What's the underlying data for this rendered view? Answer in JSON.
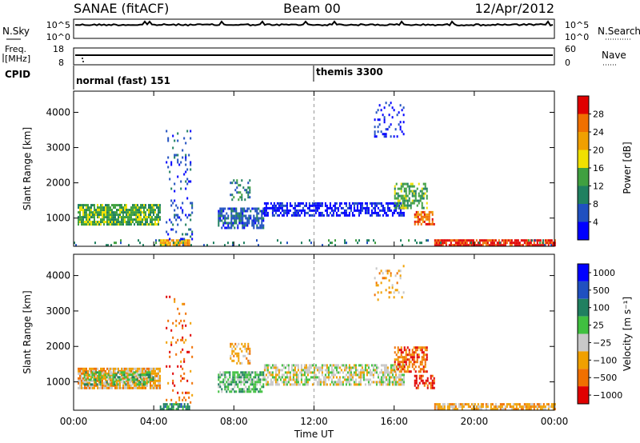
{
  "header": {
    "station": "SANAE (fitACF)",
    "beam": "Beam 00",
    "date": "12/Apr/2012"
  },
  "top_panels": {
    "nsky_label": "N.Sky",
    "nsearch_label": "N.Search",
    "nsky_ticks": [
      "10^5",
      "10^0"
    ],
    "nsearch_ticks": [
      "10^5",
      "10^0"
    ],
    "freq_label_1": "Freq.",
    "freq_label_2": "[MHz]",
    "freq_ticks": [
      "18",
      "8"
    ],
    "nave_label": "Nave",
    "nave_ticks": [
      "60",
      "0"
    ],
    "cpid_label": "CPID",
    "cpid_entries": [
      {
        "text": "normal (fast) 151",
        "start_hour": 0
      },
      {
        "text": "themis 3300",
        "start_hour": 12
      }
    ]
  },
  "colors": {
    "power_scale": [
      "#0000ff",
      "#2050c0",
      "#208060",
      "#40a040",
      "#f0e000",
      "#f0a000",
      "#f07000",
      "#e00000"
    ],
    "velocity_scale": [
      "#0000ff",
      "#2050c0",
      "#208060",
      "#40c040",
      "#c8c8c8",
      "#f0a000",
      "#f07000",
      "#e00000"
    ]
  },
  "chart_data": [
    {
      "type": "heatmap",
      "panel": "power",
      "x_range_hours": [
        0,
        24
      ],
      "xticks": [
        "00:00",
        "04:00",
        "08:00",
        "12:00",
        "16:00",
        "20:00",
        "00:00"
      ],
      "ylabel": "Slant Range [km]",
      "ylim": [
        200,
        4600
      ],
      "yticks": [
        1000,
        2000,
        3000,
        4000
      ],
      "colorbar_label": "Power [dB]",
      "colorbar_ticks": [
        "4",
        "8",
        "12",
        "16",
        "20",
        "24",
        "28"
      ],
      "features": [
        {
          "t0": 0.2,
          "t1": 4.3,
          "r0": 800,
          "r1": 1400,
          "level": 3,
          "density": 0.85
        },
        {
          "t0": 4.3,
          "t1": 5.8,
          "r0": 200,
          "r1": 400,
          "level": 5,
          "density": 0.9
        },
        {
          "t0": 4.6,
          "t1": 5.9,
          "r0": 400,
          "r1": 3500,
          "level": 1,
          "density": 0.12
        },
        {
          "t0": 7.2,
          "t1": 9.5,
          "r0": 700,
          "r1": 1300,
          "level": 1,
          "density": 0.7
        },
        {
          "t0": 7.8,
          "t1": 8.8,
          "r0": 1500,
          "r1": 2100,
          "level": 2,
          "density": 0.4
        },
        {
          "t0": 9.5,
          "t1": 16.5,
          "r0": 1050,
          "r1": 1450,
          "level": 0,
          "density": 0.6
        },
        {
          "t0": 16.0,
          "t1": 17.6,
          "r0": 1300,
          "r1": 2000,
          "level": 3,
          "density": 0.6
        },
        {
          "t0": 17.0,
          "t1": 18.0,
          "r0": 800,
          "r1": 1200,
          "level": 6,
          "density": 0.6
        },
        {
          "t0": 18.0,
          "t1": 24.0,
          "r0": 200,
          "r1": 400,
          "level": 7,
          "density": 0.8
        },
        {
          "t0": 15.0,
          "t1": 16.5,
          "r0": 3300,
          "r1": 4300,
          "level": 0,
          "density": 0.15
        },
        {
          "t0": 0.0,
          "t1": 24.0,
          "r0": 200,
          "r1": 400,
          "level": 2,
          "density": 0.08
        }
      ]
    },
    {
      "type": "heatmap",
      "panel": "velocity",
      "x_range_hours": [
        0,
        24
      ],
      "xticks": [
        "00:00",
        "04:00",
        "08:00",
        "12:00",
        "16:00",
        "20:00",
        "00:00"
      ],
      "xlabel": "Time UT",
      "ylabel": "Slant Range [km]",
      "ylim": [
        200,
        4600
      ],
      "yticks": [
        1000,
        2000,
        3000,
        4000
      ],
      "colorbar_label": "Velocity [m s⁻¹]",
      "colorbar_ticks": [
        "1000",
        "500",
        "100",
        "25",
        "−25",
        "−100",
        "−500",
        "−1000"
      ],
      "features": [
        {
          "t0": 0.2,
          "t1": 4.3,
          "r0": 800,
          "r1": 1400,
          "level": 5,
          "density": 0.85
        },
        {
          "t0": 0.5,
          "t1": 4.0,
          "r0": 900,
          "r1": 1300,
          "level": 3,
          "density": 0.5
        },
        {
          "t0": 4.3,
          "t1": 5.8,
          "r0": 200,
          "r1": 400,
          "level": 2,
          "density": 0.8
        },
        {
          "t0": 4.6,
          "t1": 5.9,
          "r0": 400,
          "r1": 3500,
          "level": 6,
          "density": 0.12
        },
        {
          "t0": 7.2,
          "t1": 9.5,
          "r0": 700,
          "r1": 1300,
          "level": 3,
          "density": 0.7
        },
        {
          "t0": 7.8,
          "t1": 8.8,
          "r0": 1500,
          "r1": 2100,
          "level": 5,
          "density": 0.4
        },
        {
          "t0": 9.5,
          "t1": 16.5,
          "r0": 950,
          "r1": 1500,
          "level": 4,
          "density": 0.65
        },
        {
          "t0": 16.0,
          "t1": 17.6,
          "r0": 1300,
          "r1": 2000,
          "level": 6,
          "density": 0.6
        },
        {
          "t0": 17.0,
          "t1": 18.0,
          "r0": 800,
          "r1": 1200,
          "level": 7,
          "density": 0.6
        },
        {
          "t0": 18.0,
          "t1": 24.0,
          "r0": 200,
          "r1": 400,
          "level": 5,
          "density": 0.75
        },
        {
          "t0": 15.0,
          "t1": 16.5,
          "r0": 3300,
          "r1": 4300,
          "level": 5,
          "density": 0.15
        }
      ]
    }
  ]
}
